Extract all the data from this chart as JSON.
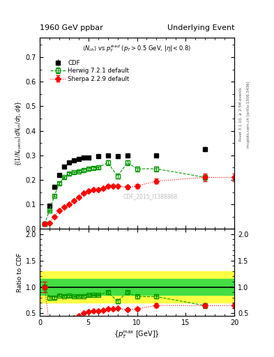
{
  "title_left": "1960 GeV ppbar",
  "title_right": "Underlying Event",
  "subtitle": "<N_{ch}> vs p_{T}^{lead} (p_{T} > 0.5 GeV, |\\eta| < 0.8)",
  "ylabel_main": "((1/N_{events}) dN_{ch}/d\\eta, d\\phi)",
  "ylabel_ratio": "Ratio to CDF",
  "xlabel": "{p_{T}^{max} [GeV]}",
  "right_label_top": "Rivet 3.1.10, ≥ 2.5M events",
  "right_label_bot": "mcplots.cern.ch [arXiv:1306.3436]",
  "watermark": "CDF_2015_I1388868",
  "cdf_x": [
    0.5,
    1.0,
    1.5,
    2.0,
    2.5,
    3.0,
    3.5,
    4.0,
    4.5,
    5.0,
    6.0,
    7.0,
    8.0,
    9.0,
    12.0,
    17.0
  ],
  "cdf_y": [
    0.02,
    0.095,
    0.17,
    0.22,
    0.255,
    0.27,
    0.28,
    0.285,
    0.29,
    0.29,
    0.295,
    0.3,
    0.295,
    0.3,
    0.3,
    0.325
  ],
  "cdf_yerr": [
    0.002,
    0.005,
    0.007,
    0.008,
    0.008,
    0.008,
    0.008,
    0.008,
    0.008,
    0.008,
    0.008,
    0.008,
    0.008,
    0.008,
    0.008,
    0.01
  ],
  "herwig_x": [
    0.5,
    1.0,
    1.5,
    2.0,
    2.5,
    3.0,
    3.5,
    4.0,
    4.5,
    5.0,
    5.5,
    6.0,
    7.0,
    8.0,
    9.0,
    10.0,
    12.0,
    17.0
  ],
  "herwig_y": [
    0.02,
    0.075,
    0.135,
    0.185,
    0.21,
    0.225,
    0.23,
    0.235,
    0.24,
    0.245,
    0.248,
    0.25,
    0.27,
    0.215,
    0.27,
    0.245,
    0.245,
    0.21
  ],
  "herwig_yerr": [
    0.001,
    0.003,
    0.004,
    0.005,
    0.005,
    0.005,
    0.005,
    0.005,
    0.005,
    0.005,
    0.005,
    0.005,
    0.01,
    0.01,
    0.01,
    0.01,
    0.01,
    0.01
  ],
  "sherpa_x": [
    0.5,
    1.0,
    1.5,
    2.0,
    2.5,
    3.0,
    3.5,
    4.0,
    4.5,
    5.0,
    5.5,
    6.0,
    6.5,
    7.0,
    7.5,
    8.0,
    9.0,
    10.0,
    12.0,
    17.0,
    20.0
  ],
  "sherpa_y": [
    0.02,
    0.025,
    0.05,
    0.075,
    0.09,
    0.1,
    0.115,
    0.13,
    0.145,
    0.155,
    0.16,
    0.16,
    0.165,
    0.175,
    0.175,
    0.175,
    0.17,
    0.175,
    0.195,
    0.21,
    0.21
  ],
  "sherpa_yerr": [
    0.002,
    0.003,
    0.004,
    0.004,
    0.004,
    0.004,
    0.004,
    0.004,
    0.004,
    0.004,
    0.004,
    0.004,
    0.004,
    0.004,
    0.004,
    0.004,
    0.008,
    0.008,
    0.01,
    0.015,
    0.015
  ],
  "ylim_main": [
    0.0,
    0.78
  ],
  "ylim_ratio": [
    0.45,
    2.1
  ],
  "xlim": [
    0,
    20
  ],
  "bg_color": "#ffffff",
  "cdf_color": "#000000",
  "herwig_color": "#009900",
  "sherpa_color": "#ff0000",
  "ratio_band_yellow": "#ffff44",
  "ratio_band_green": "#44dd44",
  "ratio_line_color": "#000000",
  "yticks_main": [
    0.0,
    0.1,
    0.2,
    0.3,
    0.4,
    0.5,
    0.6,
    0.7
  ],
  "yticks_ratio": [
    0.5,
    1.0,
    1.5,
    2.0
  ],
  "xticks": [
    0,
    5,
    10,
    15,
    20
  ]
}
